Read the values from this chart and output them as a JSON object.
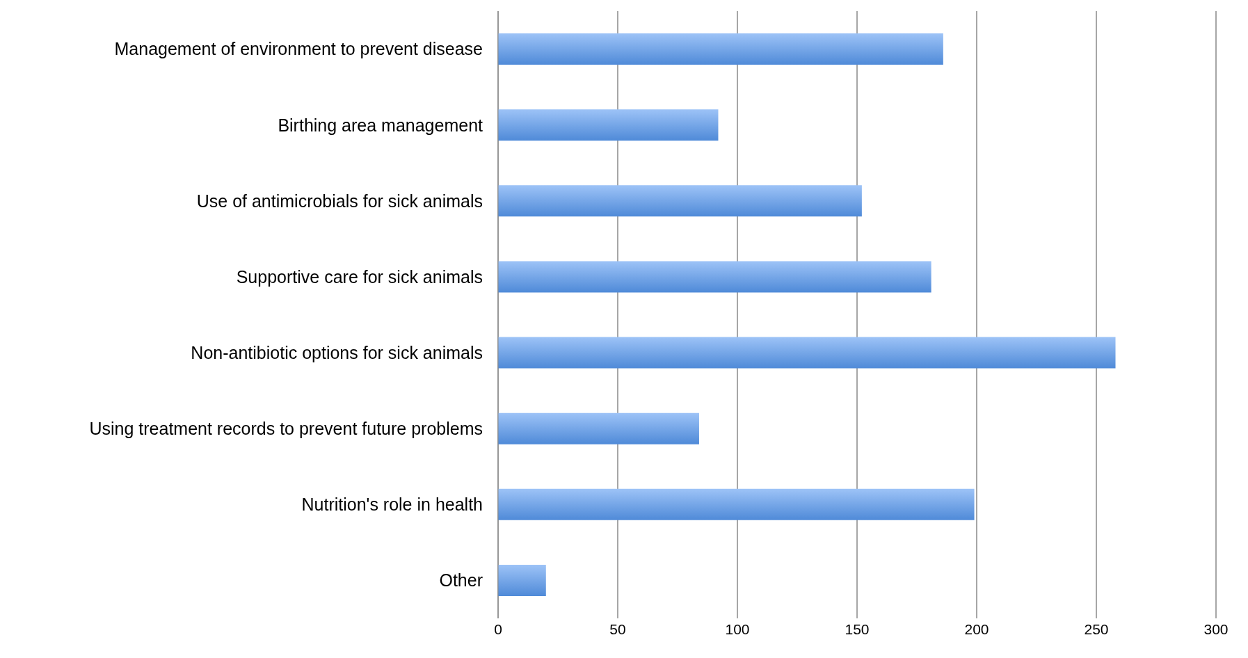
{
  "chart_data": {
    "type": "bar",
    "orientation": "horizontal",
    "categories": [
      "Management of environment to prevent disease",
      "Birthing area management",
      "Use of antimicrobials for sick animals",
      "Supportive care for sick animals",
      "Non-antibiotic options for sick animals",
      "Using treatment records to prevent future problems",
      "Nutrition's role in health",
      "Other"
    ],
    "values": [
      186,
      92,
      152,
      181,
      258,
      84,
      199,
      20
    ],
    "color": "#4f8ad8",
    "xlim": [
      0,
      300
    ],
    "xticks": [
      0,
      50,
      100,
      150,
      200,
      250,
      300
    ],
    "grid": "x"
  }
}
